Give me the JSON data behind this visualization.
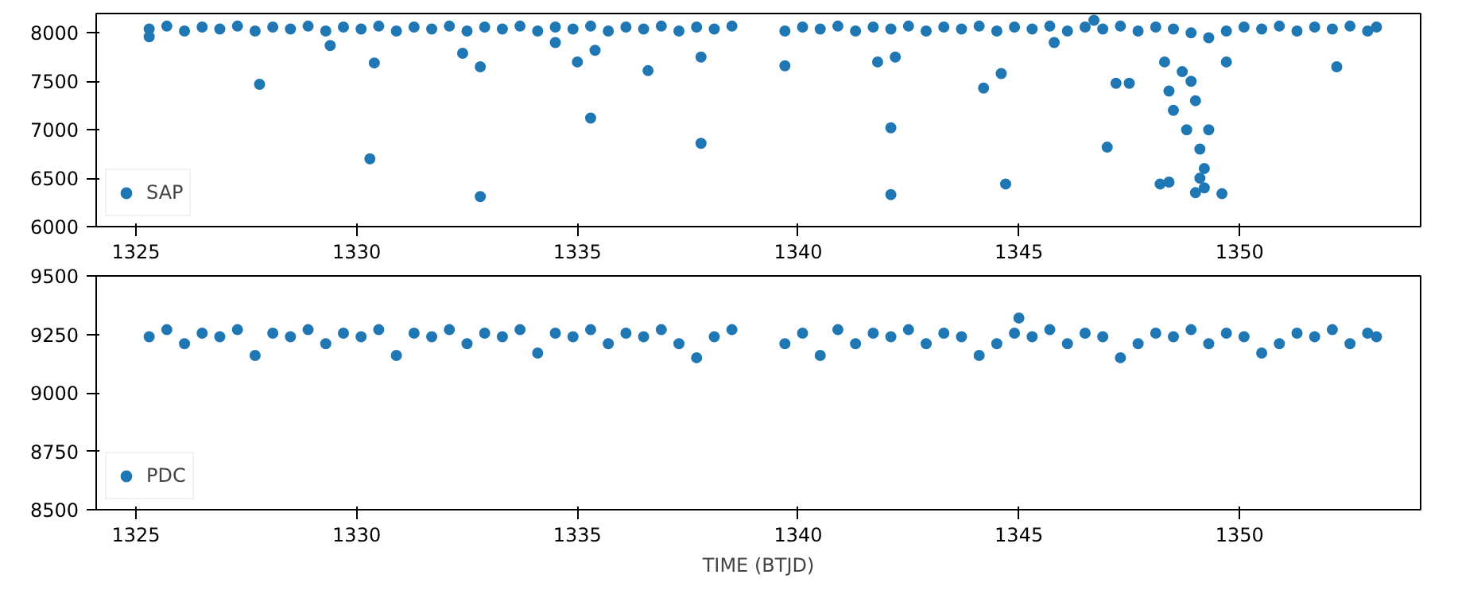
{
  "chart_data": [
    {
      "type": "scatter",
      "xlim": [
        1324.1,
        1354.1
      ],
      "xticks": [
        1325,
        1330,
        1335,
        1340,
        1345,
        1350
      ],
      "ylim": [
        6000,
        8200
      ],
      "yticks": [
        6000,
        6500,
        7000,
        7500,
        8000
      ],
      "legend": "bottom left",
      "marker": "circle",
      "grid": false,
      "series": [
        {
          "name": "SAP",
          "color": "#1f77b4",
          "x": [
            1325.3,
            1325.7,
            1326.1,
            1326.5,
            1326.9,
            1327.3,
            1327.7,
            1328.1,
            1328.5,
            1328.9,
            1329.3,
            1329.7,
            1330.1,
            1330.5,
            1330.9,
            1331.3,
            1331.7,
            1332.1,
            1332.5,
            1332.9,
            1333.3,
            1333.7,
            1334.1,
            1334.5,
            1334.9,
            1335.3,
            1335.7,
            1336.1,
            1336.5,
            1336.9,
            1337.3,
            1337.7,
            1338.1,
            1338.5,
            1339.7,
            1340.1,
            1340.5,
            1340.9,
            1341.3,
            1341.7,
            1342.1,
            1342.5,
            1342.9,
            1343.3,
            1343.7,
            1344.1,
            1344.5,
            1344.9,
            1345.3,
            1345.7,
            1346.1,
            1346.5,
            1346.9,
            1347.3,
            1347.7,
            1348.1,
            1348.5,
            1348.9,
            1349.3,
            1349.7,
            1350.1,
            1350.5,
            1350.9,
            1351.3,
            1351.7,
            1352.1,
            1352.5,
            1352.9,
            1353.1,
            1325.3,
            1327.8,
            1329.4,
            1330.3,
            1330.4,
            1332.4,
            1332.8,
            1332.8,
            1334.5,
            1335.0,
            1335.3,
            1335.4,
            1336.6,
            1337.8,
            1337.8,
            1339.7,
            1341.8,
            1342.1,
            1342.1,
            1342.2,
            1344.2,
            1344.6,
            1344.7,
            1346.7,
            1347.0,
            1347.2,
            1347.5,
            1348.2,
            1348.4,
            1348.3,
            1348.4,
            1348.5,
            1348.7,
            1348.8,
            1348.9,
            1349.0,
            1349.1,
            1349.1,
            1349.2,
            1349.2,
            1349.3,
            1349.0,
            1349.6,
            1349.7,
            1352.2,
            1345.8
          ],
          "values": [
            8040,
            8070,
            8020,
            8060,
            8040,
            8070,
            8020,
            8060,
            8040,
            8070,
            8020,
            8060,
            8040,
            8070,
            8020,
            8060,
            8040,
            8070,
            8020,
            8060,
            8040,
            8070,
            8020,
            8060,
            8040,
            8070,
            8020,
            8060,
            8040,
            8070,
            8020,
            8060,
            8040,
            8070,
            8020,
            8060,
            8040,
            8070,
            8020,
            8060,
            8040,
            8070,
            8020,
            8060,
            8040,
            8070,
            8020,
            8060,
            8040,
            8070,
            8020,
            8060,
            8040,
            8070,
            8020,
            8060,
            8040,
            8000,
            7950,
            8020,
            8060,
            8040,
            8070,
            8020,
            8060,
            8040,
            8070,
            8020,
            8060,
            7960,
            7470,
            7870,
            6700,
            7690,
            7790,
            6310,
            7650,
            7900,
            7700,
            7120,
            7820,
            7610,
            6860,
            7750,
            7660,
            7700,
            7020,
            6330,
            7750,
            7430,
            7580,
            6440,
            8130,
            6820,
            7480,
            7480,
            6440,
            6460,
            7700,
            7400,
            7200,
            7600,
            7000,
            7500,
            7300,
            6800,
            6500,
            6600,
            6400,
            7000,
            6350,
            6340,
            7700,
            7650,
            7900
          ]
        }
      ]
    },
    {
      "type": "scatter",
      "xlim": [
        1324.1,
        1354.1
      ],
      "xticks": [
        1325,
        1330,
        1335,
        1340,
        1345,
        1350
      ],
      "ylim": [
        8500,
        9500
      ],
      "yticks": [
        8500,
        8750,
        9000,
        9250,
        9500
      ],
      "xlabel": "TIME (BTJD)",
      "legend": "bottom left",
      "marker": "circle",
      "grid": false,
      "series": [
        {
          "name": "PDC",
          "color": "#1f77b4",
          "x": [
            1325.3,
            1325.7,
            1326.1,
            1326.5,
            1326.9,
            1327.3,
            1327.7,
            1328.1,
            1328.5,
            1328.9,
            1329.3,
            1329.7,
            1330.1,
            1330.5,
            1330.9,
            1331.3,
            1331.7,
            1332.1,
            1332.5,
            1332.9,
            1333.3,
            1333.7,
            1334.1,
            1334.5,
            1334.9,
            1335.3,
            1335.7,
            1336.1,
            1336.5,
            1336.9,
            1337.3,
            1337.7,
            1338.1,
            1338.5,
            1339.7,
            1340.1,
            1340.5,
            1340.9,
            1341.3,
            1341.7,
            1342.1,
            1342.5,
            1342.9,
            1343.3,
            1343.7,
            1344.1,
            1344.5,
            1344.9,
            1345.3,
            1345.7,
            1346.1,
            1346.5,
            1346.9,
            1347.3,
            1347.7,
            1348.1,
            1348.5,
            1348.9,
            1349.3,
            1349.7,
            1350.1,
            1350.5,
            1350.9,
            1351.3,
            1351.7,
            1352.1,
            1352.5,
            1352.9,
            1353.1,
            1345.0
          ],
          "values": [
            9240,
            9270,
            9210,
            9255,
            9240,
            9270,
            9160,
            9255,
            9240,
            9270,
            9210,
            9255,
            9240,
            9270,
            9160,
            9255,
            9240,
            9270,
            9210,
            9255,
            9240,
            9270,
            9170,
            9255,
            9240,
            9270,
            9210,
            9255,
            9240,
            9270,
            9210,
            9150,
            9240,
            9270,
            9210,
            9255,
            9160,
            9270,
            9210,
            9255,
            9240,
            9270,
            9210,
            9255,
            9240,
            9160,
            9210,
            9255,
            9240,
            9270,
            9210,
            9255,
            9240,
            9150,
            9210,
            9255,
            9240,
            9270,
            9210,
            9255,
            9240,
            9170,
            9210,
            9255,
            9240,
            9270,
            9210,
            9255,
            9240,
            9320
          ]
        }
      ]
    }
  ]
}
